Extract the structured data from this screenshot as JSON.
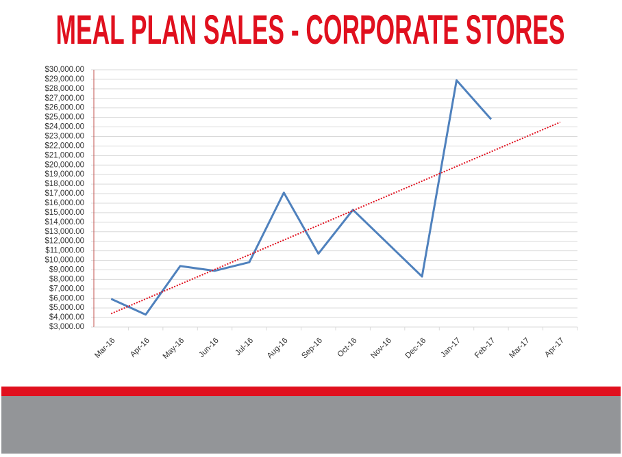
{
  "chart_data": {
    "type": "line",
    "title": "MEAL PLAN SALES - CORPORATE STORES",
    "categories": [
      "Mar-16",
      "Apr-16",
      "May-16",
      "Jun-16",
      "Jul-16",
      "Aug-16",
      "Sep-16",
      "Oct-16",
      "Nov-16",
      "Dec-16",
      "Jan-17",
      "Feb-17",
      "Mar-17",
      "Apr-17"
    ],
    "series": [
      {
        "color": "#4f81bd",
        "values": [
          5950,
          4300,
          9400,
          8900,
          9800,
          17100,
          10700,
          15300,
          11800,
          8300,
          28900,
          24800,
          null,
          null
        ]
      }
    ],
    "trendline": {
      "color": "#e0101e",
      "values": [
        4400,
        24500
      ]
    },
    "ylim": [
      3000,
      30000
    ],
    "yticks": [
      {
        "value": 3000,
        "label": "$3,000.00"
      },
      {
        "value": 4000,
        "label": "$4,000.00"
      },
      {
        "value": 5000,
        "label": "$5,000.00"
      },
      {
        "value": 6000,
        "label": "$6,000.00"
      },
      {
        "value": 7000,
        "label": "$7,000.00"
      },
      {
        "value": 8000,
        "label": "$8,000.00"
      },
      {
        "value": 9000,
        "label": "$9,000.00"
      },
      {
        "value": 10000,
        "label": "$10,000.00"
      },
      {
        "value": 11000,
        "label": "$11,000.00"
      },
      {
        "value": 12000,
        "label": "$12,000.00"
      },
      {
        "value": 13000,
        "label": "$13,000.00"
      },
      {
        "value": 14000,
        "label": "$14,000.00"
      },
      {
        "value": 15000,
        "label": "$15,000.00"
      },
      {
        "value": 16000,
        "label": "$16,000.00"
      },
      {
        "value": 17000,
        "label": "$17,000.00"
      },
      {
        "value": 18000,
        "label": "$18,000.00"
      },
      {
        "value": 19000,
        "label": "$19,000.00"
      },
      {
        "value": 20000,
        "label": "$20,000.00"
      },
      {
        "value": 21000,
        "label": "$21,000.00"
      },
      {
        "value": 22000,
        "label": "$22,000.00"
      },
      {
        "value": 23000,
        "label": "$23,000.00"
      },
      {
        "value": 24000,
        "label": "$24,000.00"
      },
      {
        "value": 25000,
        "label": "$25,000.00"
      },
      {
        "value": 26000,
        "label": "$26,000.00"
      },
      {
        "value": 27000,
        "label": "$27,000.00"
      },
      {
        "value": 28000,
        "label": "$28,000.00"
      },
      {
        "value": 29000,
        "label": "$29,000.00"
      },
      {
        "value": 30000,
        "label": "$30,000.00"
      }
    ],
    "grid": true
  }
}
